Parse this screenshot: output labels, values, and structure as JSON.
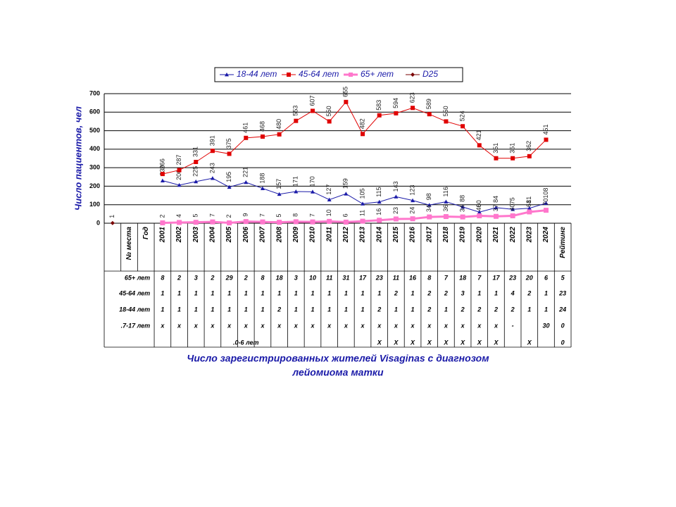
{
  "chart_data": {
    "type": "line",
    "title_lines": [
      "Число зарегистрированных жителей  Visaginas с диагнозом",
      "лейомиома матки"
    ],
    "y_label": "Число пациентов, чел",
    "ylim": [
      0,
      700
    ],
    "yticks": [
      0,
      100,
      200,
      300,
      400,
      500,
      600,
      700
    ],
    "grid": true,
    "legend_position": "top",
    "categories": [
      null,
      "№ места",
      "Год",
      "2001",
      "2002",
      "2003",
      "2004",
      "2005",
      "2006",
      "2007",
      "2008",
      "2009",
      "2010",
      "2011",
      "2012",
      "2013",
      "2014",
      "2015",
      "2016",
      "2017",
      "2018",
      "2019",
      "2020",
      "2021",
      "2022",
      "2023",
      "2024",
      "Рейтинг"
    ],
    "series": [
      {
        "name": "18-44 лет",
        "color": "#1a1aa8",
        "marker": "triangle",
        "line_width": 1,
        "values": [
          null,
          null,
          null,
          230,
          206,
          225,
          243,
          195,
          221,
          188,
          157,
          171,
          170,
          127,
          159,
          105,
          115,
          143,
          123,
          98,
          116,
          88,
          60,
          84,
          75,
          81,
          108,
          null
        ]
      },
      {
        "name": "45-64 лет",
        "color": "#e00000",
        "marker": "square",
        "line_width": 1,
        "values": [
          null,
          null,
          null,
          266,
          287,
          331,
          391,
          375,
          461,
          468,
          480,
          553,
          607,
          550,
          655,
          482,
          583,
          594,
          623,
          589,
          550,
          524,
          421,
          351,
          351,
          362,
          451,
          null
        ]
      },
      {
        "name": "65+ лет",
        "color": "#ff77cc",
        "marker": "square",
        "line_width": 3,
        "values": [
          null,
          null,
          null,
          2,
          4,
          5,
          7,
          2,
          9,
          7,
          5,
          8,
          7,
          10,
          6,
          11,
          16,
          23,
          24,
          34,
          36,
          34,
          40,
          37,
          40,
          61,
          70,
          null
        ]
      },
      {
        "name": "D25",
        "color": "#7a0000",
        "marker": "diamond",
        "line_width": 1,
        "values": [
          1,
          null,
          null,
          null,
          null,
          null,
          null,
          null,
          null,
          null,
          null,
          null,
          null,
          null,
          null,
          null,
          null,
          null,
          null,
          null,
          null,
          null,
          null,
          null,
          null,
          null,
          null,
          null
        ]
      }
    ]
  },
  "table": {
    "rows": [
      {
        "label": "65+ лет",
        "cells": [
          "8",
          "2",
          "3",
          "2",
          "29",
          "2",
          "8",
          "18",
          "3",
          "10",
          "11",
          "31",
          "17",
          "23",
          "11",
          "16",
          "8",
          "7",
          "18",
          "7",
          "17",
          "23",
          "20",
          "6",
          "5"
        ]
      },
      {
        "label": "45-64 лет",
        "cells": [
          "1",
          "1",
          "1",
          "1",
          "1",
          "1",
          "1",
          "1",
          "1",
          "1",
          "1",
          "1",
          "1",
          "1",
          "2",
          "1",
          "2",
          "2",
          "3",
          "1",
          "1",
          "4",
          "2",
          "1",
          "23"
        ]
      },
      {
        "label": "18-44 лет",
        "cells": [
          "1",
          "1",
          "1",
          "1",
          "1",
          "1",
          "1",
          "2",
          "1",
          "1",
          "1",
          "1",
          "1",
          "2",
          "1",
          "1",
          "2",
          "1",
          "2",
          "2",
          "2",
          "2",
          "1",
          "1",
          "24"
        ]
      },
      {
        "label": ".7-17 лет",
        "cells": [
          "x",
          "x",
          "x",
          "x",
          "x",
          "x",
          "x",
          "x",
          "x",
          "x",
          "x",
          "x",
          "x",
          "x",
          "x",
          "x",
          "x",
          "x",
          "x",
          "x",
          "x",
          "-",
          null,
          "30",
          "0"
        ]
      },
      {
        "label": ".0-6 лет",
        "cells": [
          null,
          null,
          null,
          null,
          null,
          null,
          null,
          null,
          null,
          null,
          null,
          null,
          null,
          "Х",
          "Х",
          "Х",
          "Х",
          "Х",
          "Х",
          "Х",
          "Х",
          null,
          "Х",
          null,
          "0"
        ]
      }
    ]
  }
}
